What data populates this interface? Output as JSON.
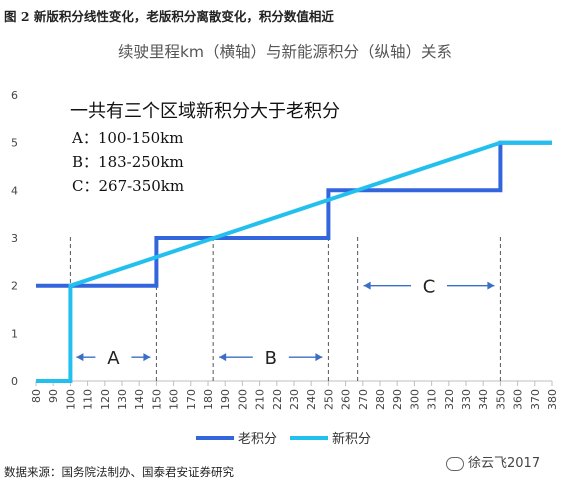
{
  "figure_title": "图 2 新版积分线性变化，老版积分离散变化，积分数值相近",
  "source": "数据来源：国务院法制办、国泰君安证券研究",
  "watermark": "徐云飞2017",
  "chart_data": {
    "type": "line",
    "title": "续驶里程km（横轴）与新能源积分（纵轴）关系",
    "xlabel": "",
    "ylabel": "",
    "x_ticks": [
      80,
      90,
      100,
      110,
      120,
      130,
      140,
      150,
      160,
      170,
      180,
      190,
      200,
      210,
      220,
      230,
      240,
      250,
      260,
      270,
      280,
      290,
      300,
      310,
      320,
      330,
      340,
      350,
      360,
      370,
      380
    ],
    "xlim": [
      80,
      380
    ],
    "ylim": [
      0,
      6
    ],
    "y_ticks": [
      0,
      1,
      2,
      3,
      4,
      5,
      6
    ],
    "grid": false,
    "legend_position": "bottom",
    "series": [
      {
        "name": "老积分",
        "color": "#3366dd",
        "points": [
          [
            80,
            2
          ],
          [
            100,
            2
          ],
          [
            150,
            2
          ],
          [
            150,
            3
          ],
          [
            250,
            3
          ],
          [
            250,
            4
          ],
          [
            350,
            4
          ],
          [
            350,
            5
          ],
          [
            380,
            5
          ]
        ]
      },
      {
        "name": "新积分",
        "color": "#22c0ee",
        "points": [
          [
            80,
            0
          ],
          [
            100,
            0
          ],
          [
            100,
            2
          ],
          [
            350,
            5
          ],
          [
            380,
            5
          ]
        ]
      }
    ],
    "annotations": {
      "heading": "一共有三个区域新积分大于老积分",
      "lines": [
        "A：100-150km",
        "B：183-250km",
        "C：267-350km"
      ],
      "regions": [
        {
          "label": "A",
          "from": 100,
          "to": 150,
          "y": 0.5
        },
        {
          "label": "B",
          "from": 183,
          "to": 250,
          "y": 0.5
        },
        {
          "label": "C",
          "from": 267,
          "to": 350,
          "y": 2.0
        }
      ],
      "dashed_x": [
        100,
        150,
        183,
        250,
        267,
        350
      ]
    }
  }
}
